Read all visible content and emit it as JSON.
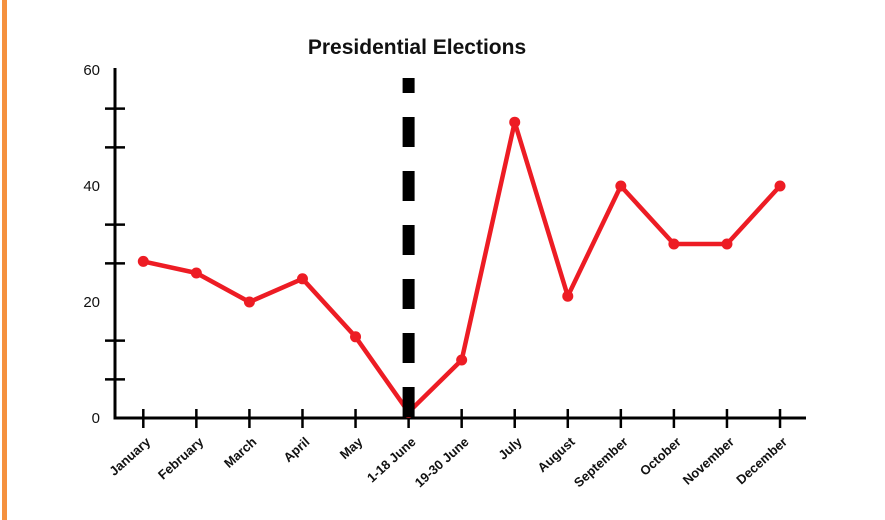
{
  "page": {
    "background_color": "#ffffff",
    "accent_stripe_color": "#f5913e"
  },
  "chart_data": {
    "type": "line",
    "title": "Presidential Elections",
    "categories": [
      "January",
      "February",
      "March",
      "April",
      "May",
      "1-18 June",
      "19-30 June",
      "July",
      "August",
      "September",
      "October",
      "November",
      "December"
    ],
    "series": [
      {
        "name": "Presidential Elections",
        "color": "#ed1c24",
        "values": [
          27,
          25,
          20,
          24,
          14,
          1,
          10,
          51,
          21,
          40,
          30,
          30,
          40
        ]
      }
    ],
    "xlabel": "",
    "ylabel": "",
    "ylim": [
      0,
      60
    ],
    "ytick_labels": [
      0,
      20,
      40,
      60
    ],
    "y_minor_ticks_per_interval": 2,
    "grid": false,
    "legend": false,
    "axis_color": "#000000",
    "annotations": [
      {
        "type": "vertical-dashed-line",
        "x": "1-18 June",
        "color": "#000000"
      }
    ]
  }
}
